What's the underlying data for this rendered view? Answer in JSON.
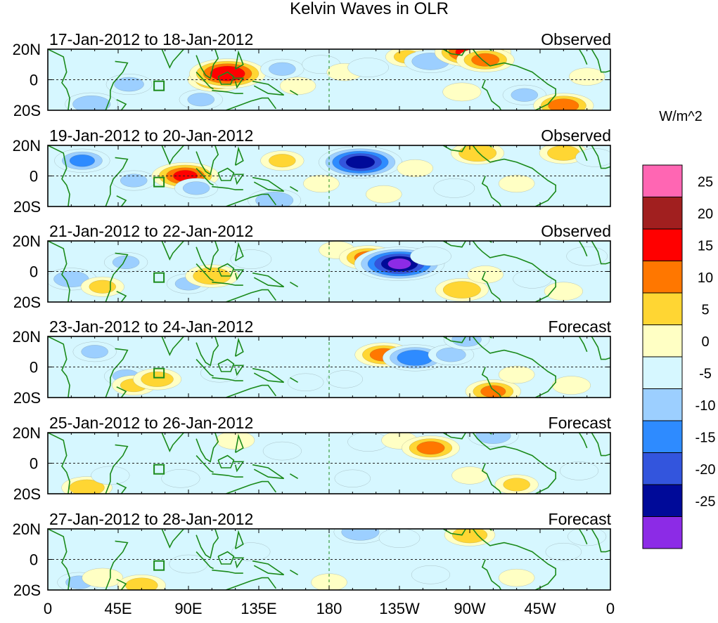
{
  "chart_data": {
    "type": "heatmap",
    "title": "Kelvin Waves in OLR",
    "units": "W/m^2",
    "y_tick_labels": [
      "20N",
      "0",
      "20S"
    ],
    "x_tick_labels": [
      "0",
      "45E",
      "90E",
      "135E",
      "180",
      "135W",
      "90W",
      "45W",
      "0"
    ],
    "x_range_deg": [
      0,
      360
    ],
    "y_range_deg": [
      -20,
      20
    ],
    "colorbar": {
      "levels": [
        -25,
        -20,
        -15,
        -10,
        -5,
        0,
        5,
        10,
        15,
        20,
        25
      ],
      "level_labels": [
        "25",
        "20",
        "15",
        "10",
        "5",
        "0",
        "-5",
        "-10",
        "-15",
        "-20",
        "-25"
      ],
      "colors": [
        "#ff66b3",
        "#a11f1f",
        "#ff0000",
        "#ff7700",
        "#ffd633",
        "#ffffc4",
        "#d6f7ff",
        "#9ccfff",
        "#2e8bff",
        "#3355dd",
        "#000a99",
        "#8c2be6"
      ]
    },
    "panels": [
      {
        "date_range": "17-Jan-2012 to 18-Jan-2012",
        "status": "Observed",
        "blobs": [
          [
            28,
            -16,
            -12
          ],
          [
            52,
            -3,
            -9
          ],
          [
            98,
            -13,
            -8
          ],
          [
            108,
            0,
            14
          ],
          [
            115,
            4,
            22
          ],
          [
            150,
            7,
            -8
          ],
          [
            160,
            -4,
            5
          ],
          [
            175,
            10,
            -6
          ],
          [
            190,
            5,
            5
          ],
          [
            205,
            8,
            -7
          ],
          [
            230,
            15,
            8
          ],
          [
            245,
            12,
            -12
          ],
          [
            265,
            -8,
            6
          ],
          [
            272,
            18,
            22
          ],
          [
            280,
            13,
            14
          ],
          [
            305,
            -10,
            -8
          ],
          [
            330,
            -17,
            15
          ],
          [
            345,
            2,
            5
          ]
        ]
      },
      {
        "date_range": "19-Jan-2012 to 20-Jan-2012",
        "status": "Observed",
        "blobs": [
          [
            22,
            10,
            -13
          ],
          [
            55,
            -3,
            -8
          ],
          [
            88,
            0,
            18
          ],
          [
            95,
            -8,
            -8
          ],
          [
            145,
            -16,
            -12
          ],
          [
            150,
            10,
            8
          ],
          [
            175,
            -5,
            5
          ],
          [
            200,
            9,
            -25
          ],
          [
            215,
            -12,
            5
          ],
          [
            235,
            5,
            5
          ],
          [
            260,
            -8,
            -7
          ],
          [
            275,
            15,
            12
          ],
          [
            300,
            -5,
            5
          ],
          [
            330,
            15,
            10
          ],
          [
            350,
            12,
            -6
          ]
        ]
      },
      {
        "date_range": "21-Jan-2012 to 22-Jan-2012",
        "status": "Observed",
        "blobs": [
          [
            15,
            -5,
            -11
          ],
          [
            35,
            -10,
            8
          ],
          [
            50,
            6,
            -8
          ],
          [
            90,
            -8,
            -8
          ],
          [
            105,
            -3,
            12
          ],
          [
            130,
            8,
            -7
          ],
          [
            185,
            14,
            5
          ],
          [
            205,
            9,
            14
          ],
          [
            225,
            5,
            -28
          ],
          [
            245,
            10,
            -7
          ],
          [
            265,
            -12,
            12
          ],
          [
            280,
            -2,
            5
          ],
          [
            310,
            -5,
            -6
          ],
          [
            330,
            -13,
            6
          ],
          [
            345,
            10,
            -7
          ]
        ]
      },
      {
        "date_range": "23-Jan-2012 to 24-Jan-2012",
        "status": "Forecast",
        "blobs": [
          [
            30,
            10,
            -8
          ],
          [
            50,
            -6,
            -8
          ],
          [
            55,
            -12,
            8
          ],
          [
            70,
            -8,
            10
          ],
          [
            110,
            -4,
            -6
          ],
          [
            165,
            -10,
            -5
          ],
          [
            190,
            -8,
            -5
          ],
          [
            215,
            8,
            14
          ],
          [
            235,
            6,
            -17
          ],
          [
            258,
            8,
            -9
          ],
          [
            268,
            18,
            -9
          ],
          [
            285,
            -16,
            13
          ],
          [
            300,
            -5,
            5
          ],
          [
            335,
            -12,
            6
          ]
        ]
      },
      {
        "date_range": "25-Jan-2012 to 26-Jan-2012",
        "status": "Forecast",
        "blobs": [
          [
            25,
            -16,
            11
          ],
          [
            40,
            -8,
            -6
          ],
          [
            85,
            -10,
            -6
          ],
          [
            120,
            15,
            6
          ],
          [
            150,
            8,
            -6
          ],
          [
            195,
            -10,
            -5
          ],
          [
            205,
            14,
            -7
          ],
          [
            225,
            15,
            5
          ],
          [
            245,
            10,
            14
          ],
          [
            270,
            -8,
            5
          ],
          [
            285,
            18,
            -11
          ],
          [
            300,
            -14,
            8
          ],
          [
            340,
            -5,
            -6
          ]
        ]
      },
      {
        "date_range": "27-Jan-2012 to 28-Jan-2012",
        "status": "Forecast",
        "blobs": [
          [
            20,
            -15,
            -8
          ],
          [
            35,
            -12,
            7
          ],
          [
            60,
            -17,
            10
          ],
          [
            90,
            -3,
            -6
          ],
          [
            130,
            5,
            -6
          ],
          [
            180,
            -15,
            5
          ],
          [
            200,
            18,
            -12
          ],
          [
            225,
            14,
            -7
          ],
          [
            245,
            -10,
            -6
          ],
          [
            270,
            16,
            11
          ],
          [
            300,
            -12,
            5
          ],
          [
            330,
            5,
            -5
          ],
          [
            345,
            15,
            -6
          ]
        ]
      }
    ]
  }
}
